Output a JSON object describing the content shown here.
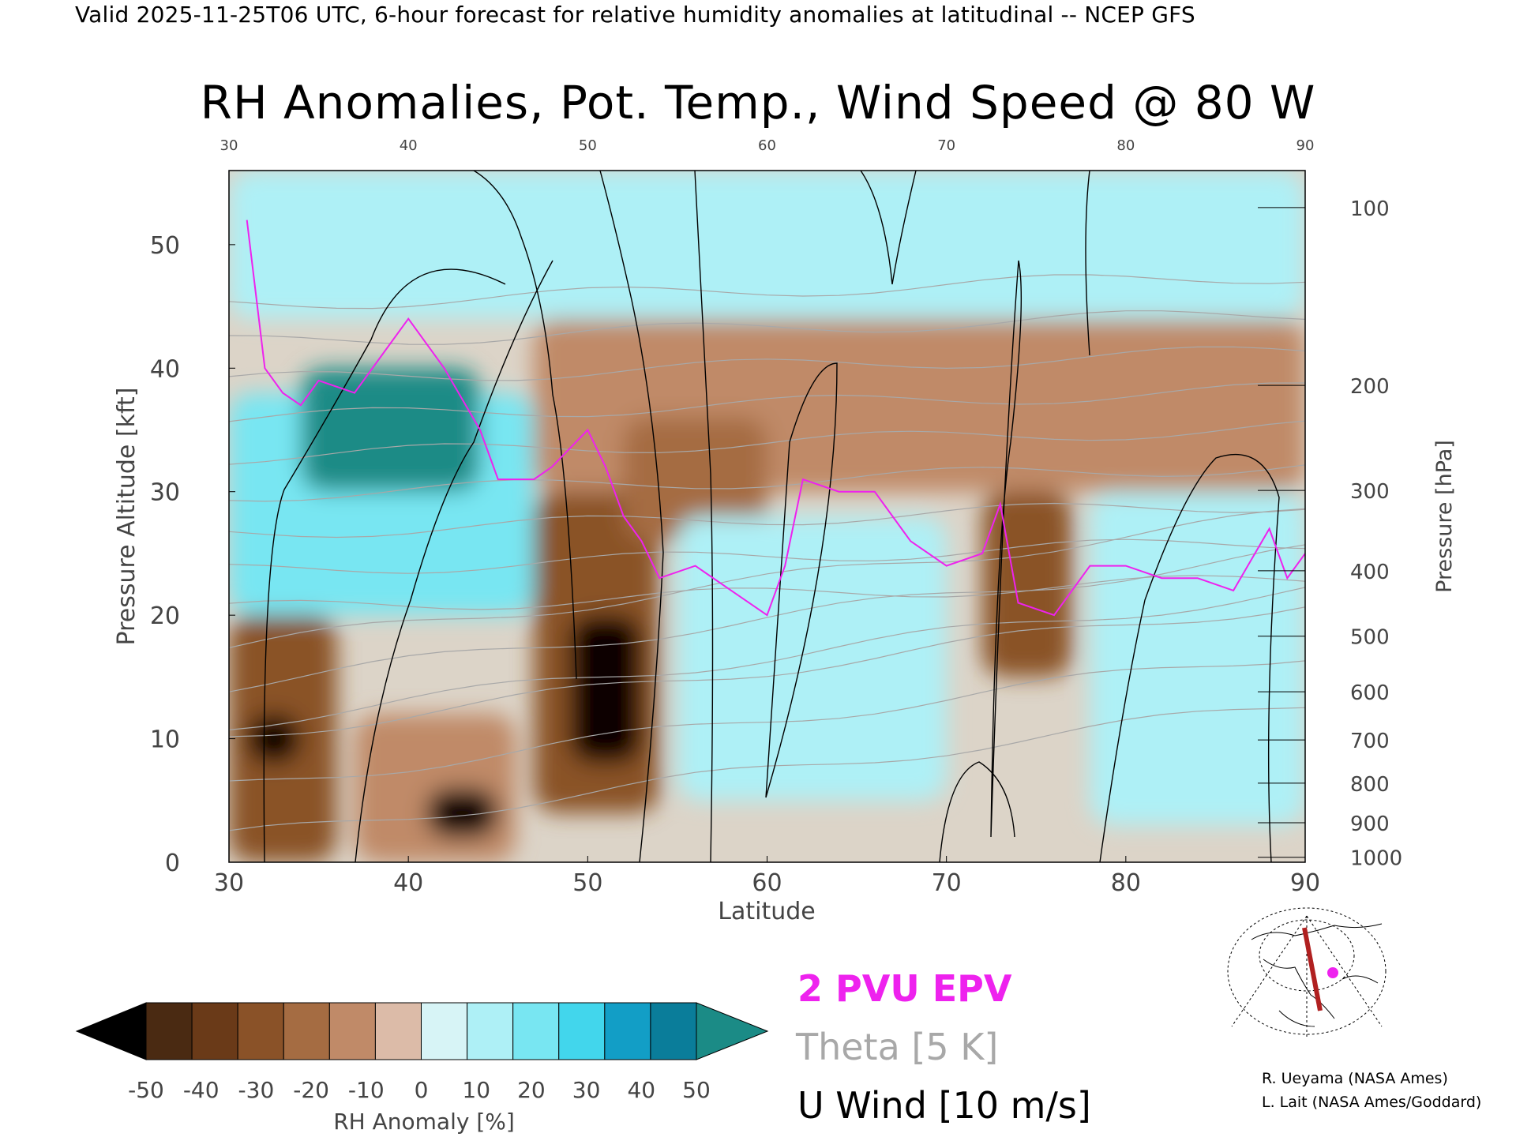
{
  "header": "Valid 2025-11-25T06 UTC, 6-hour forecast for relative humidity anomalies at latitudinal -- NCEP GFS",
  "chart_data": {
    "type": "heatmap",
    "title": "RH Anomalies, Pot. Temp., Wind Speed @ 80 W",
    "xlabel": "Latitude",
    "ylabel_left": "Pressure Altitude [kft]",
    "ylabel_right": "Pressure [hPa]",
    "x_range": [
      30,
      90
    ],
    "y_range_kft": [
      0,
      56
    ],
    "x_ticks": [
      "30",
      "40",
      "50",
      "60",
      "70",
      "80",
      "90"
    ],
    "y_ticks_kft": [
      "0",
      "10",
      "20",
      "30",
      "40",
      "50"
    ],
    "pressure_ticks": [
      {
        "label": "100",
        "kft": 53.0
      },
      {
        "label": "200",
        "kft": 38.6
      },
      {
        "label": "300",
        "kft": 30.1
      },
      {
        "label": "400",
        "kft": 23.6
      },
      {
        "label": "500",
        "kft": 18.3
      },
      {
        "label": "600",
        "kft": 13.8
      },
      {
        "label": "700",
        "kft": 9.9
      },
      {
        "label": "800",
        "kft": 6.4
      },
      {
        "label": "900",
        "kft": 3.2
      },
      {
        "label": "1000",
        "kft": 0.4
      }
    ],
    "rh_anomaly_regions": [
      {
        "lat": [
          30,
          36
        ],
        "kft": [
          0,
          20
        ],
        "anomaly": -35
      },
      {
        "lat": [
          31,
          34
        ],
        "kft": [
          8,
          12
        ],
        "anomaly": -50
      },
      {
        "lat": [
          37,
          46
        ],
        "kft": [
          0,
          12
        ],
        "anomaly": -20
      },
      {
        "lat": [
          41,
          45
        ],
        "kft": [
          2,
          6
        ],
        "anomaly": -50
      },
      {
        "lat": [
          30,
          47
        ],
        "kft": [
          20,
          38
        ],
        "anomaly": 20
      },
      {
        "lat": [
          34,
          44
        ],
        "kft": [
          30,
          40
        ],
        "anomaly": 50
      },
      {
        "lat": [
          47,
          54
        ],
        "kft": [
          4,
          30
        ],
        "anomaly": -35
      },
      {
        "lat": [
          49,
          53
        ],
        "kft": [
          8,
          20
        ],
        "anomaly": -50
      },
      {
        "lat": [
          47,
          90
        ],
        "kft": [
          30,
          44
        ],
        "anomaly": -15
      },
      {
        "lat": [
          52,
          60
        ],
        "kft": [
          26,
          36
        ],
        "anomaly": -30
      },
      {
        "lat": [
          55,
          70
        ],
        "kft": [
          5,
          28
        ],
        "anomaly": 15
      },
      {
        "lat": [
          72,
          77
        ],
        "kft": [
          15,
          30
        ],
        "anomaly": -35
      },
      {
        "lat": [
          78,
          90
        ],
        "kft": [
          3,
          30
        ],
        "anomaly": 15
      },
      {
        "lat": [
          30,
          90
        ],
        "kft": [
          44,
          56
        ],
        "anomaly": 10
      }
    ],
    "theta_levels_K": [
      "280",
      "290",
      "300",
      "310",
      "320",
      "330",
      "340",
      "350",
      "360",
      "370",
      "380",
      "390",
      "400",
      "410",
      "420"
    ],
    "u_wind_contour_levels_ms": [
      "-10",
      "0",
      "10",
      "20",
      "30",
      "50"
    ],
    "pv_2pvu_kft": [
      {
        "lat": 31,
        "kft": 52
      },
      {
        "lat": 32,
        "kft": 40
      },
      {
        "lat": 33,
        "kft": 38
      },
      {
        "lat": 34,
        "kft": 37
      },
      {
        "lat": 35,
        "kft": 39
      },
      {
        "lat": 37,
        "kft": 38
      },
      {
        "lat": 39,
        "kft": 42
      },
      {
        "lat": 40,
        "kft": 44
      },
      {
        "lat": 42,
        "kft": 40
      },
      {
        "lat": 44,
        "kft": 35
      },
      {
        "lat": 45,
        "kft": 31
      },
      {
        "lat": 47,
        "kft": 31
      },
      {
        "lat": 48,
        "kft": 32
      },
      {
        "lat": 50,
        "kft": 35
      },
      {
        "lat": 51,
        "kft": 32
      },
      {
        "lat": 52,
        "kft": 28
      },
      {
        "lat": 53,
        "kft": 26
      },
      {
        "lat": 54,
        "kft": 23
      },
      {
        "lat": 56,
        "kft": 24
      },
      {
        "lat": 58,
        "kft": 22
      },
      {
        "lat": 60,
        "kft": 20
      },
      {
        "lat": 61,
        "kft": 24
      },
      {
        "lat": 62,
        "kft": 31
      },
      {
        "lat": 64,
        "kft": 30
      },
      {
        "lat": 66,
        "kft": 30
      },
      {
        "lat": 68,
        "kft": 26
      },
      {
        "lat": 70,
        "kft": 24
      },
      {
        "lat": 72,
        "kft": 25
      },
      {
        "lat": 73,
        "kft": 29
      },
      {
        "lat": 74,
        "kft": 21
      },
      {
        "lat": 76,
        "kft": 20
      },
      {
        "lat": 78,
        "kft": 24
      },
      {
        "lat": 80,
        "kft": 24
      },
      {
        "lat": 82,
        "kft": 23
      },
      {
        "lat": 84,
        "kft": 23
      },
      {
        "lat": 86,
        "kft": 22
      },
      {
        "lat": 88,
        "kft": 27
      },
      {
        "lat": 89,
        "kft": 23
      },
      {
        "lat": 90,
        "kft": 25
      }
    ]
  },
  "colorbar": {
    "ticks": [
      "-50",
      "-40",
      "-30",
      "-20",
      "-10",
      "0",
      "10",
      "20",
      "30",
      "40",
      "50"
    ],
    "label": "RH Anomaly [%]",
    "colors": [
      "#4a2a12",
      "#6a3a18",
      "#8a5228",
      "#a56c42",
      "#c08a68",
      "#dcbba8",
      "#d7f4f6",
      "#aef0f6",
      "#78e6f2",
      "#42d6ec",
      "#129ec6",
      "#0a7d9a"
    ],
    "low_extend_color": "#000000",
    "high_extend_color": "#1b8b86"
  },
  "legend": {
    "pv": "2 PVU EPV",
    "theta": "Theta [5 K]",
    "wind": "U Wind [10 m/s]",
    "pv_color": "#ee22ee",
    "theta_color": "#a8a8a8",
    "wind_color": "#000000"
  },
  "credits": [
    "R. Ueyama (NASA Ames)",
    "L. Lait (NASA Ames/Goddard)"
  ]
}
